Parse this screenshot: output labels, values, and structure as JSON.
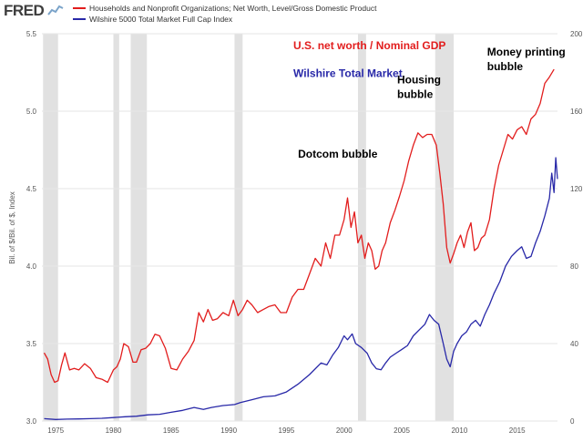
{
  "header": {
    "logo": "FRED",
    "logo_icon": "line-chart-icon",
    "legend": [
      {
        "label": "Households and Nonprofit Organizations; Net Worth, Level/Gross Domestic Product",
        "color": "#e21d1d"
      },
      {
        "label": "Wilshire 5000 Total Market Full Cap Index",
        "color": "#2828a8"
      }
    ]
  },
  "chart_data": {
    "type": "line",
    "x_range": [
      1973.8,
      2018.5
    ],
    "left_axis": {
      "label": "Bil. of $/Bil. of $, Index",
      "range": [
        3.0,
        5.5
      ],
      "ticks": [
        "3.0",
        "3.5",
        "4.0",
        "4.5",
        "5.0",
        "5.5"
      ],
      "tick_values": [
        3.0,
        3.5,
        4.0,
        4.5,
        5.0,
        5.5
      ]
    },
    "right_axis": {
      "range": [
        0,
        200
      ],
      "ticks": [
        "0",
        "40",
        "80",
        "120",
        "160",
        "200"
      ],
      "tick_values": [
        0,
        40,
        80,
        120,
        160,
        200
      ]
    },
    "x_ticks": [
      "1975",
      "1980",
      "1985",
      "1990",
      "1995",
      "2000",
      "2005",
      "2010",
      "2015"
    ],
    "x_tick_values": [
      1975,
      1980,
      1985,
      1990,
      1995,
      2000,
      2005,
      2010,
      2015
    ],
    "recessions": [
      [
        1973.9,
        1975.2
      ],
      [
        1980.0,
        1980.5
      ],
      [
        1981.5,
        1982.9
      ],
      [
        1990.5,
        1991.2
      ],
      [
        2001.2,
        2001.9
      ],
      [
        2007.9,
        2009.5
      ]
    ],
    "recession_color": "#e1e1e1",
    "series": [
      {
        "name": "Households and Nonprofit Organizations; Net Worth, Level/Gross Domestic Product",
        "axis": "left",
        "color": "#e21d1d",
        "x": [
          1974.0,
          1974.3,
          1974.6,
          1974.9,
          1975.2,
          1975.5,
          1975.8,
          1976.2,
          1976.6,
          1977.0,
          1977.5,
          1978.0,
          1978.5,
          1979.0,
          1979.5,
          1980.0,
          1980.3,
          1980.6,
          1980.9,
          1981.3,
          1981.7,
          1982.0,
          1982.4,
          1982.8,
          1983.2,
          1983.6,
          1984.0,
          1984.5,
          1985.0,
          1985.5,
          1986.0,
          1986.5,
          1987.0,
          1987.4,
          1987.8,
          1988.2,
          1988.6,
          1989.0,
          1989.5,
          1990.0,
          1990.4,
          1990.8,
          1991.2,
          1991.6,
          1992.0,
          1992.5,
          1993.0,
          1993.5,
          1994.0,
          1994.5,
          1995.0,
          1995.5,
          1996.0,
          1996.5,
          1997.0,
          1997.5,
          1998.0,
          1998.4,
          1998.8,
          1999.2,
          1999.6,
          2000.0,
          2000.3,
          2000.6,
          2000.9,
          2001.2,
          2001.5,
          2001.8,
          2002.1,
          2002.4,
          2002.7,
          2003.0,
          2003.3,
          2003.6,
          2004.0,
          2004.4,
          2004.8,
          2005.2,
          2005.6,
          2006.0,
          2006.4,
          2006.8,
          2007.2,
          2007.6,
          2008.0,
          2008.3,
          2008.6,
          2008.9,
          2009.2,
          2009.5,
          2009.8,
          2010.1,
          2010.4,
          2010.7,
          2011.0,
          2011.3,
          2011.6,
          2011.9,
          2012.2,
          2012.6,
          2013.0,
          2013.4,
          2013.8,
          2014.2,
          2014.6,
          2015.0,
          2015.4,
          2015.8,
          2016.2,
          2016.6,
          2017.0,
          2017.4,
          2017.8,
          2018.2
        ],
        "values": [
          3.44,
          3.4,
          3.3,
          3.25,
          3.26,
          3.36,
          3.44,
          3.33,
          3.34,
          3.33,
          3.37,
          3.34,
          3.28,
          3.27,
          3.25,
          3.33,
          3.35,
          3.4,
          3.5,
          3.48,
          3.38,
          3.38,
          3.46,
          3.47,
          3.5,
          3.56,
          3.55,
          3.47,
          3.34,
          3.33,
          3.4,
          3.45,
          3.52,
          3.7,
          3.64,
          3.72,
          3.65,
          3.66,
          3.7,
          3.68,
          3.78,
          3.68,
          3.72,
          3.78,
          3.75,
          3.7,
          3.72,
          3.74,
          3.75,
          3.7,
          3.7,
          3.8,
          3.85,
          3.85,
          3.95,
          4.05,
          4.0,
          4.15,
          4.05,
          4.2,
          4.2,
          4.3,
          4.44,
          4.25,
          4.35,
          4.15,
          4.2,
          4.05,
          4.15,
          4.1,
          3.98,
          4.0,
          4.1,
          4.15,
          4.28,
          4.36,
          4.45,
          4.55,
          4.68,
          4.78,
          4.86,
          4.83,
          4.85,
          4.85,
          4.78,
          4.6,
          4.4,
          4.12,
          4.02,
          4.08,
          4.15,
          4.2,
          4.12,
          4.22,
          4.28,
          4.1,
          4.12,
          4.18,
          4.2,
          4.3,
          4.5,
          4.65,
          4.75,
          4.85,
          4.82,
          4.88,
          4.9,
          4.85,
          4.95,
          4.98,
          5.05,
          5.18,
          5.22,
          5.27
        ]
      },
      {
        "name": "Wilshire 5000 Total Market Full Cap Index",
        "axis": "right",
        "color": "#2828a8",
        "x": [
          1974.0,
          1975.0,
          1976.0,
          1977.0,
          1978.0,
          1979.0,
          1980.0,
          1981.0,
          1982.0,
          1983.0,
          1984.0,
          1985.0,
          1986.0,
          1987.0,
          1987.8,
          1988.5,
          1989.5,
          1990.5,
          1991.0,
          1992.0,
          1993.0,
          1994.0,
          1995.0,
          1996.0,
          1997.0,
          1998.0,
          1998.5,
          1999.0,
          1999.5,
          2000.0,
          2000.3,
          2000.7,
          2001.0,
          2001.5,
          2002.0,
          2002.4,
          2002.8,
          2003.2,
          2003.6,
          2004.0,
          2004.5,
          2005.0,
          2005.5,
          2006.0,
          2006.5,
          2007.0,
          2007.4,
          2007.8,
          2008.2,
          2008.6,
          2008.9,
          2009.2,
          2009.5,
          2009.8,
          2010.2,
          2010.6,
          2011.0,
          2011.4,
          2011.8,
          2012.2,
          2012.6,
          2013.0,
          2013.5,
          2014.0,
          2014.5,
          2015.0,
          2015.4,
          2015.8,
          2016.2,
          2016.6,
          2017.0,
          2017.4,
          2017.8,
          2018.0,
          2018.2,
          2018.35,
          2018.5
        ],
        "values": [
          1.2,
          0.8,
          1.0,
          1.1,
          1.2,
          1.4,
          1.8,
          2.2,
          2.5,
          3.2,
          3.5,
          4.5,
          5.5,
          7.0,
          6.0,
          7.0,
          8.0,
          8.5,
          9.5,
          11.0,
          12.5,
          13.0,
          15.0,
          19.0,
          24.0,
          30.0,
          29.0,
          34.0,
          38.0,
          44.0,
          42.0,
          45.0,
          40.0,
          38.0,
          35.0,
          30.0,
          27.0,
          26.5,
          30.0,
          33.0,
          35.0,
          37.0,
          39.0,
          44.0,
          47.0,
          50.0,
          55.0,
          52.0,
          50.0,
          40.0,
          32.0,
          28.0,
          36.0,
          40.0,
          44.0,
          46.0,
          50.0,
          52.0,
          49.0,
          55.0,
          60.0,
          66.0,
          72.0,
          80.0,
          85.0,
          88.0,
          90.0,
          84.0,
          85.0,
          92.0,
          98.0,
          106.0,
          115.0,
          128.0,
          118.0,
          136.0,
          125.0
        ]
      }
    ],
    "annotations": [
      {
        "text": "U.S. net worth / Nominal GDP",
        "color": "#e21d1d",
        "x": 1995.6,
        "y": 5.4
      },
      {
        "text": "Wilshire Total Market",
        "color": "#2828a8",
        "x": 1995.6,
        "y": 5.22
      },
      {
        "text": "Dotcom bubble",
        "color": "#000000",
        "x": 1996.0,
        "y": 4.7
      },
      {
        "text": "Housing bubble",
        "color": "#000000",
        "x": 2004.6,
        "y": 5.18
      },
      {
        "text": "Money printing bubble",
        "color": "#000000",
        "x": 2012.4,
        "y": 5.36
      }
    ]
  }
}
